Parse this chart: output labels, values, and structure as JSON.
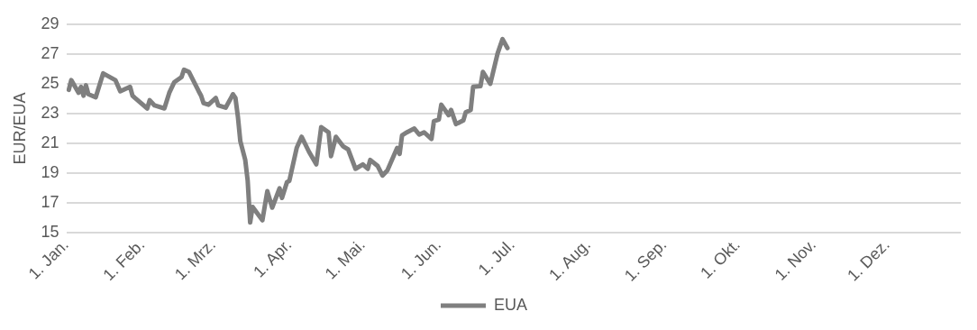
{
  "chart_data": {
    "type": "line",
    "ylabel": "EUR/EUA",
    "x": [
      "--01-02",
      "--01-03",
      "--01-06",
      "--01-07",
      "--01-08",
      "--01-09",
      "--01-10",
      "--01-13",
      "--01-16",
      "--01-21",
      "--01-23",
      "--01-27",
      "--01-28",
      "--01-29",
      "--02-03",
      "--02-04",
      "--02-06",
      "--02-10",
      "--02-12",
      "--02-14",
      "--02-17",
      "--02-18",
      "--02-20",
      "--02-24",
      "--02-25",
      "--02-26",
      "--02-28",
      "--03-02",
      "--03-03",
      "--03-06",
      "--03-09",
      "--03-10",
      "--03-11",
      "--03-12",
      "--03-14",
      "--03-15",
      "--03-16",
      "--03-17",
      "--03-21",
      "--03-23",
      "--03-25",
      "--03-28",
      "--03-29",
      "--03-31",
      "--04-01",
      "--04-04",
      "--04-06",
      "--04-09",
      "--04-12",
      "--04-14",
      "--04-17",
      "--04-18",
      "--04-20",
      "--04-23",
      "--04-25",
      "--04-28",
      "--05-01",
      "--05-03",
      "--05-04",
      "--05-07",
      "--05-09",
      "--05-11",
      "--05-15",
      "--05-16",
      "--05-17",
      "--05-19",
      "--05-22",
      "--05-24",
      "--05-26",
      "--05-29",
      "--05-30",
      "--06-01",
      "--06-02",
      "--06-05",
      "--06-06",
      "--06-08",
      "--06-11",
      "--06-12",
      "--06-14",
      "--06-15",
      "--06-18",
      "--06-19",
      "--06-22",
      "--06-25",
      "--06-27",
      "--06-29"
    ],
    "series": [
      {
        "name": "EUA",
        "color": "#7f7f7f",
        "values": [
          24.6,
          25.25,
          24.4,
          24.8,
          24.2,
          24.9,
          24.3,
          24.1,
          25.7,
          25.25,
          24.5,
          24.8,
          24.2,
          24.05,
          23.35,
          23.9,
          23.55,
          23.35,
          24.4,
          25.1,
          25.45,
          25.95,
          25.8,
          24.5,
          24.2,
          23.7,
          23.6,
          24.05,
          23.55,
          23.4,
          24.3,
          24.05,
          22.8,
          21.15,
          19.9,
          18.5,
          15.7,
          16.75,
          15.85,
          17.8,
          16.7,
          18.0,
          17.35,
          18.4,
          18.5,
          20.7,
          21.45,
          20.45,
          19.6,
          22.1,
          21.75,
          20.15,
          21.45,
          20.8,
          20.6,
          19.3,
          19.6,
          19.3,
          19.9,
          19.5,
          18.85,
          19.2,
          20.7,
          20.3,
          21.55,
          21.75,
          22.0,
          21.6,
          21.75,
          21.3,
          22.5,
          22.6,
          23.6,
          22.9,
          23.25,
          22.3,
          22.55,
          23.1,
          23.25,
          24.8,
          24.85,
          25.8,
          25.0,
          27.05,
          28.0,
          27.4
        ]
      }
    ],
    "xlim": [
      "--01-01",
      "--12-31"
    ],
    "xticks": [
      {
        "value": "--01-01",
        "label": "1. Jan."
      },
      {
        "value": "--02-01",
        "label": "1. Feb."
      },
      {
        "value": "--03-01",
        "label": "1. Mrz."
      },
      {
        "value": "--04-01",
        "label": "1. Apr."
      },
      {
        "value": "--05-01",
        "label": "1. Mai."
      },
      {
        "value": "--06-01",
        "label": "1. Jun."
      },
      {
        "value": "--07-01",
        "label": "1. Jul."
      },
      {
        "value": "--08-01",
        "label": "1. Aug."
      },
      {
        "value": "--09-01",
        "label": "1. Sep."
      },
      {
        "value": "--10-01",
        "label": "1. Okt."
      },
      {
        "value": "--11-01",
        "label": "1. Nov."
      },
      {
        "value": "--12-01",
        "label": "1. Dez."
      }
    ],
    "ylim": [
      15,
      29
    ],
    "yticks": [
      15,
      17,
      19,
      21,
      23,
      25,
      27,
      29
    ],
    "grid": "y",
    "legend": "bottom",
    "marker": "none",
    "line_style": "solid"
  }
}
